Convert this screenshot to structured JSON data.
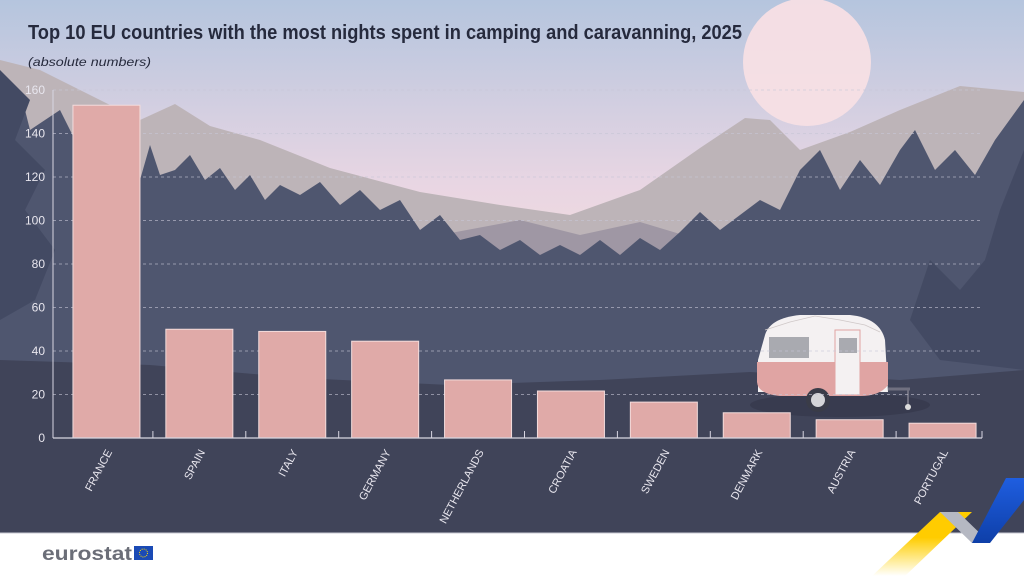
{
  "chart_data": {
    "type": "bar",
    "title": "Top 10 EU countries with the most nights spent in camping and caravanning, 2025",
    "subtitle": "(absolute numbers)",
    "categories": [
      "FRANCE",
      "SPAIN",
      "ITALY",
      "GERMANY",
      "NETHERLANDS",
      "CROATIA",
      "SWEDEN",
      "DENMARK",
      "AUSTRIA",
      "PORTUGAL"
    ],
    "values": [
      153,
      50,
      49,
      44.5,
      26.7,
      21.6,
      16.5,
      11.6,
      8.4,
      6.8
    ],
    "ylim": [
      0,
      160
    ],
    "yticks": [
      0,
      20,
      40,
      60,
      80,
      100,
      120,
      140,
      160
    ],
    "grid": true,
    "gridStyle": "dashed",
    "bar_color": "#e0aaa8",
    "xlabel": "",
    "ylabel": ""
  },
  "footer": {
    "logo_text": "eurostat"
  },
  "colors": {
    "sky_top": "#b7c6de",
    "sky_bottom": "#f8e0d6",
    "forest": "#4f566f",
    "ground": "#404459",
    "mountain": "#bdb4b8"
  }
}
